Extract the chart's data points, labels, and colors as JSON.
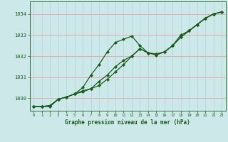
{
  "title": "Graphe pression niveau de la mer (hPa)",
  "background_color": "#cce8e8",
  "grid_color_h": "#e8a8a8",
  "grid_color_v": "#aad4d4",
  "line_color": "#1a5c1a",
  "marker": "D",
  "markersize": 2.2,
  "linewidth": 0.9,
  "ylim": [
    1029.4,
    1034.6
  ],
  "xlim": [
    -0.5,
    23.5
  ],
  "yticks": [
    1030,
    1031,
    1032,
    1033,
    1034
  ],
  "xticks": [
    0,
    1,
    2,
    3,
    4,
    5,
    6,
    7,
    8,
    9,
    10,
    11,
    12,
    13,
    14,
    15,
    16,
    17,
    18,
    19,
    20,
    21,
    22,
    23
  ],
  "series": [
    [
      1029.6,
      1029.6,
      1029.6,
      1029.95,
      1030.05,
      1030.2,
      1030.5,
      1031.1,
      1031.6,
      1032.2,
      1032.65,
      1032.8,
      1032.95,
      1032.5,
      1032.15,
      1032.05,
      1032.2,
      1032.5,
      1033.0,
      1033.2,
      1033.5,
      1033.8,
      1034.0,
      1034.1
    ],
    [
      1029.6,
      1029.6,
      1029.65,
      1029.95,
      1030.05,
      1030.2,
      1030.3,
      1030.45,
      1030.6,
      1030.9,
      1031.25,
      1031.6,
      1032.0,
      1032.35,
      1032.15,
      1032.1,
      1032.2,
      1032.5,
      1032.9,
      1033.2,
      1033.5,
      1033.8,
      1034.0,
      1034.1
    ],
    [
      1029.6,
      1029.6,
      1029.65,
      1029.95,
      1030.05,
      1030.2,
      1030.35,
      1030.45,
      1030.8,
      1031.1,
      1031.5,
      1031.8,
      1032.0,
      1032.35,
      1032.15,
      1032.1,
      1032.2,
      1032.5,
      1032.9,
      1033.2,
      1033.5,
      1033.8,
      1034.0,
      1034.1
    ]
  ]
}
